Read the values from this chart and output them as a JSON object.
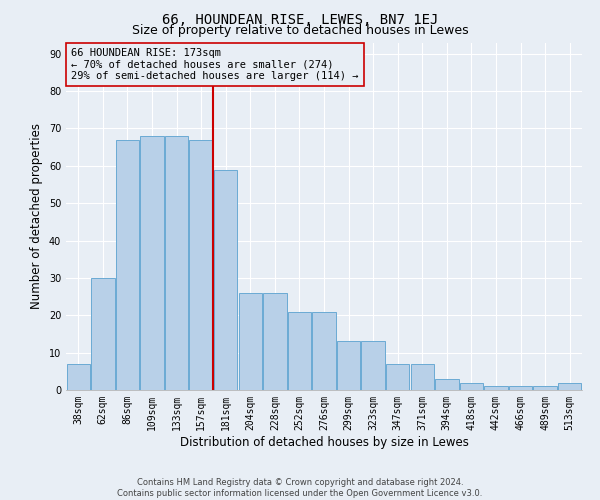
{
  "title": "66, HOUNDEAN RISE, LEWES, BN7 1EJ",
  "subtitle": "Size of property relative to detached houses in Lewes",
  "xlabel": "Distribution of detached houses by size in Lewes",
  "ylabel": "Number of detached properties",
  "categories": [
    "38sqm",
    "62sqm",
    "86sqm",
    "109sqm",
    "133sqm",
    "157sqm",
    "181sqm",
    "204sqm",
    "228sqm",
    "252sqm",
    "276sqm",
    "299sqm",
    "323sqm",
    "347sqm",
    "371sqm",
    "394sqm",
    "418sqm",
    "442sqm",
    "466sqm",
    "489sqm",
    "513sqm"
  ],
  "values": [
    7,
    30,
    67,
    68,
    68,
    67,
    59,
    26,
    26,
    21,
    21,
    13,
    13,
    7,
    7,
    3,
    2,
    1,
    1,
    1,
    2
  ],
  "bar_color": "#b8d0e8",
  "bar_edge_color": "#6aaad4",
  "vline_color": "#cc0000",
  "annotation_text": "66 HOUNDEAN RISE: 173sqm\n← 70% of detached houses are smaller (274)\n29% of semi-detached houses are larger (114) →",
  "ylim": [
    0,
    93
  ],
  "yticks": [
    0,
    10,
    20,
    30,
    40,
    50,
    60,
    70,
    80,
    90
  ],
  "footer": "Contains HM Land Registry data © Crown copyright and database right 2024.\nContains public sector information licensed under the Open Government Licence v3.0.",
  "bg_color": "#e8eef5",
  "grid_color": "#ffffff",
  "title_fontsize": 10,
  "subtitle_fontsize": 9,
  "axis_label_fontsize": 8.5,
  "tick_fontsize": 7,
  "annotation_fontsize": 7.5,
  "footer_fontsize": 6
}
